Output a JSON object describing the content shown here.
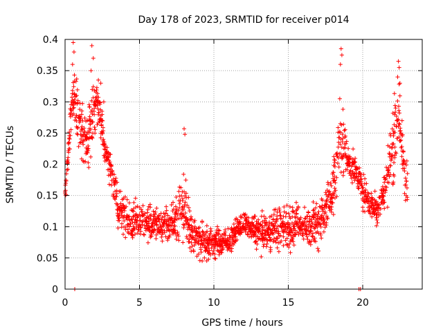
{
  "chart_data": {
    "type": "scatter",
    "title": "Day 178 of 2023, SRMTID for receiver p014",
    "xlabel": "GPS time / hours",
    "ylabel": "SRMTID / TECUs",
    "xlim": [
      0,
      24
    ],
    "ylim": [
      0,
      0.4
    ],
    "grid": true,
    "marker": "+",
    "color": "#ff0000",
    "xticks": [
      0,
      5,
      10,
      15,
      20
    ],
    "xtick_labels": [
      "0",
      "5",
      "10",
      "15",
      "20"
    ],
    "yticks": [
      0,
      0.05,
      0.1,
      0.15,
      0.2,
      0.25,
      0.3,
      0.35,
      0.4
    ],
    "ytick_labels": [
      "0",
      "0.05",
      "0.1",
      "0.15",
      "0.2",
      "0.25",
      "0.3",
      "0.35",
      "0.4"
    ],
    "series": [
      {
        "name": "SRMTID",
        "seed": 178,
        "band": [
          [
            0.0,
            0.12,
            0.18
          ],
          [
            0.3,
            0.2,
            0.3
          ],
          [
            0.6,
            0.24,
            0.39
          ],
          [
            1.0,
            0.2,
            0.32
          ],
          [
            1.5,
            0.16,
            0.3
          ],
          [
            1.9,
            0.22,
            0.39
          ],
          [
            2.3,
            0.24,
            0.33
          ],
          [
            2.7,
            0.19,
            0.25
          ],
          [
            3.2,
            0.14,
            0.22
          ],
          [
            3.6,
            0.08,
            0.17
          ],
          [
            4.0,
            0.08,
            0.16
          ],
          [
            4.5,
            0.06,
            0.15
          ],
          [
            5.0,
            0.07,
            0.15
          ],
          [
            6.0,
            0.07,
            0.14
          ],
          [
            7.0,
            0.06,
            0.14
          ],
          [
            8.0,
            0.06,
            0.22
          ],
          [
            8.5,
            0.05,
            0.13
          ],
          [
            9.0,
            0.03,
            0.12
          ],
          [
            10.0,
            0.04,
            0.11
          ],
          [
            11.0,
            0.05,
            0.1
          ],
          [
            11.5,
            0.07,
            0.12
          ],
          [
            12.0,
            0.08,
            0.13
          ],
          [
            13.0,
            0.05,
            0.13
          ],
          [
            14.0,
            0.05,
            0.14
          ],
          [
            15.0,
            0.05,
            0.15
          ],
          [
            16.0,
            0.06,
            0.14
          ],
          [
            17.0,
            0.05,
            0.16
          ],
          [
            17.5,
            0.07,
            0.18
          ],
          [
            18.0,
            0.09,
            0.22
          ],
          [
            18.5,
            0.14,
            0.36
          ],
          [
            19.0,
            0.17,
            0.24
          ],
          [
            19.5,
            0.16,
            0.22
          ],
          [
            20.0,
            0.12,
            0.2
          ],
          [
            20.5,
            0.1,
            0.17
          ],
          [
            21.0,
            0.09,
            0.17
          ],
          [
            21.5,
            0.1,
            0.22
          ],
          [
            22.0,
            0.14,
            0.32
          ],
          [
            22.4,
            0.18,
            0.36
          ],
          [
            23.0,
            0.1,
            0.22
          ]
        ],
        "spikes": [
          [
            0.55,
            0.395
          ],
          [
            0.6,
            0.38
          ],
          [
            0.5,
            0.36
          ],
          [
            1.8,
            0.39
          ],
          [
            1.9,
            0.37
          ],
          [
            1.75,
            0.35
          ],
          [
            8.0,
            0.257
          ],
          [
            8.05,
            0.248
          ],
          [
            18.55,
            0.385
          ],
          [
            18.6,
            0.375
          ],
          [
            18.5,
            0.36
          ],
          [
            22.4,
            0.365
          ],
          [
            22.45,
            0.355
          ],
          [
            22.35,
            0.34
          ],
          [
            22.5,
            0.33
          ],
          [
            2.4,
            0.33
          ],
          [
            2.6,
            0.3
          ]
        ],
        "zeros": [
          0.65,
          19.75,
          19.85
        ]
      }
    ]
  }
}
